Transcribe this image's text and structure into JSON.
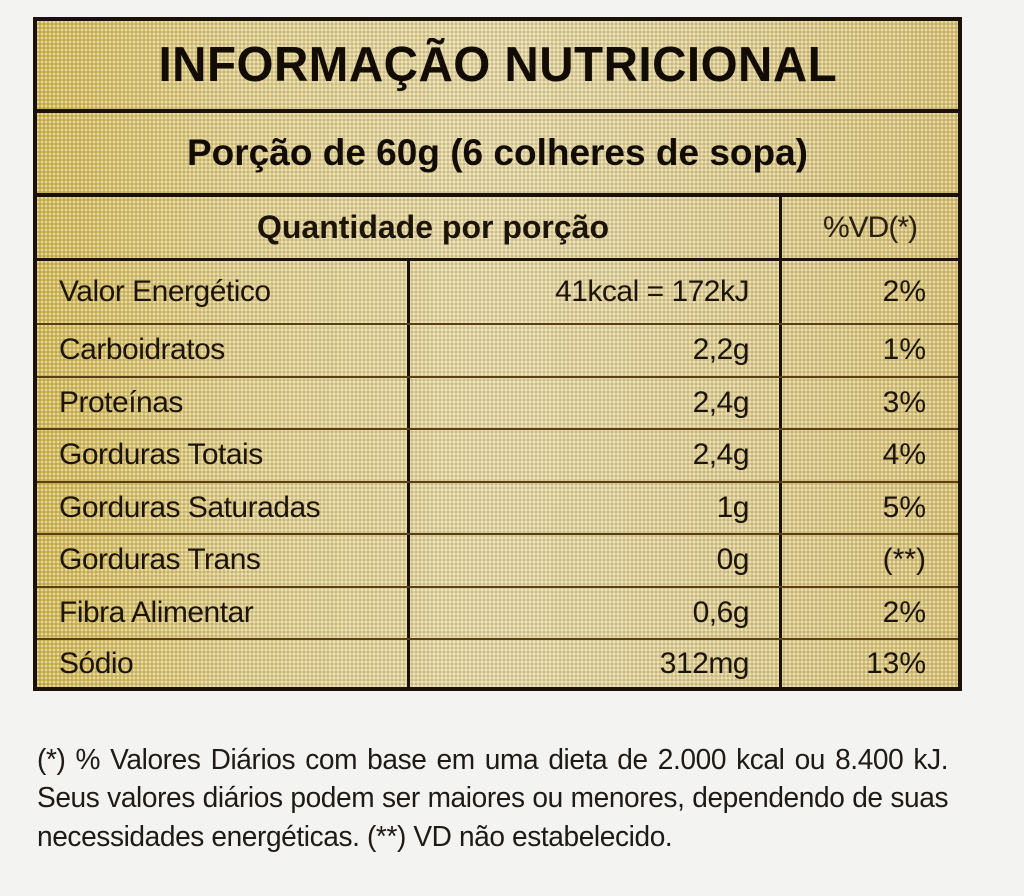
{
  "label": {
    "title": "INFORMAÇÃO NUTRICIONAL",
    "serving": "Porção de 60g (6 colheres de sopa)",
    "header": {
      "quantity": "Quantidade por porção",
      "daily_value": "%VD(*)"
    },
    "rows": [
      {
        "name": "Valor Energético",
        "amount": "41kcal = 172kJ",
        "dv": "2%"
      },
      {
        "name": "Carboidratos",
        "amount": "2,2g",
        "dv": "1%"
      },
      {
        "name": "Proteínas",
        "amount": "2,4g",
        "dv": "3%"
      },
      {
        "name": "Gorduras Totais",
        "amount": "2,4g",
        "dv": "4%"
      },
      {
        "name": "Gorduras Saturadas",
        "amount": "1g",
        "dv": "5%"
      },
      {
        "name": "Gorduras Trans",
        "amount": "0g",
        "dv": "(**)"
      },
      {
        "name": "Fibra Alimentar",
        "amount": "0,6g",
        "dv": "2%"
      },
      {
        "name": "Sódio",
        "amount": "312mg",
        "dv": "13%"
      }
    ]
  },
  "footnote": "(*) % Valores Diários com base em uma dieta de 2.000 kcal ou 8.400 kJ. Seus valores diários podem ser maiores ou menores, dependendo de suas necessidades energéticas. (**) VD não estabelecido.",
  "colors": {
    "label_background": "#d9c98f",
    "label_gold_edge": "#cdb55a",
    "border": "#1a1208",
    "text": "#1c130a",
    "page_background": "#f3f3f1"
  }
}
